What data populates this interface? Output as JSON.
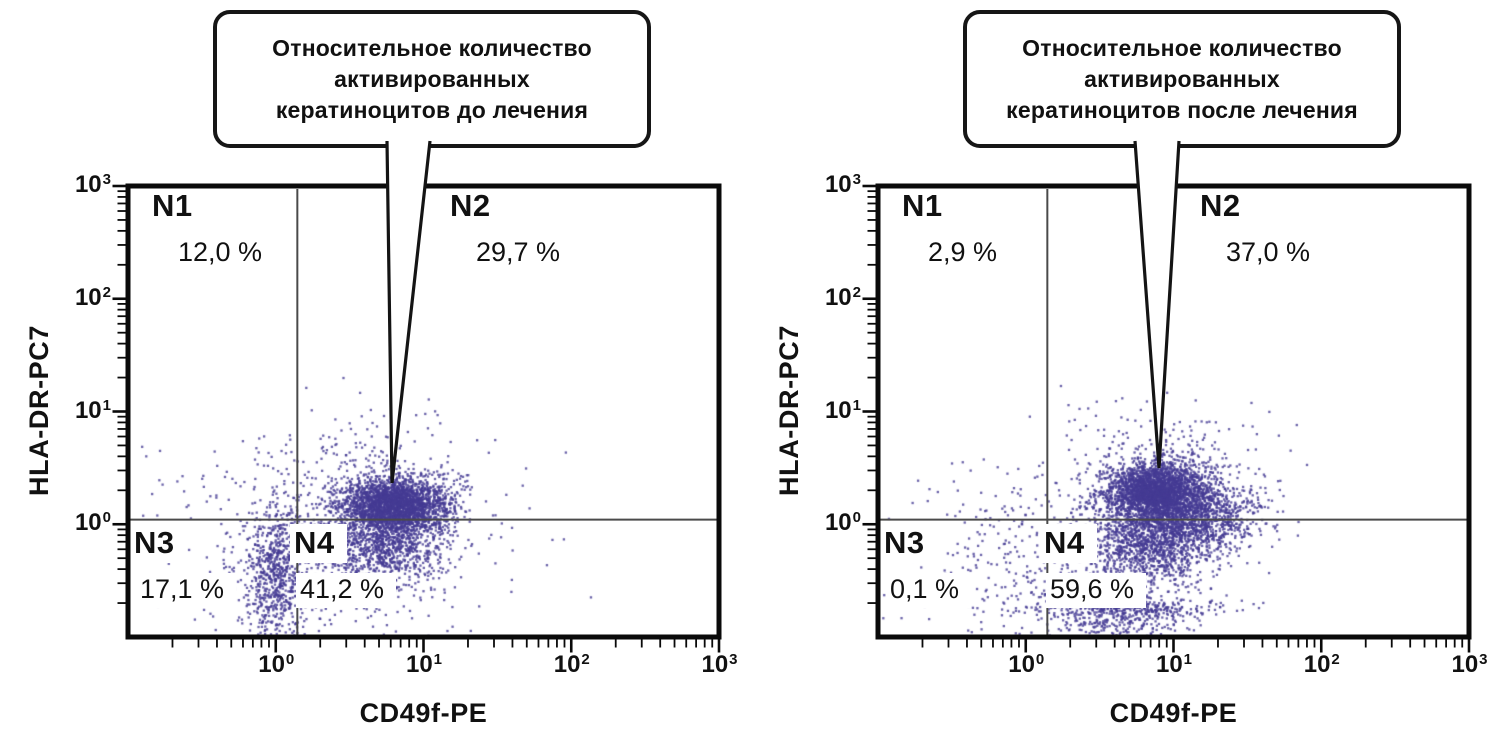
{
  "figure": {
    "background": "#ffffff",
    "dot_color": "#453b94",
    "frame_color": "#0a0a0a",
    "gate_color": "#4a4a4a",
    "text_color": "#111111",
    "tick_base": "10",
    "panels": [
      {
        "callout_lines": [
          "Относительное количество",
          "активированных",
          "кератиноцитов до лечения"
        ],
        "x_label": "CD49f-PE",
        "y_label": "HLA-DR-PC7",
        "quadrants": [
          {
            "name": "N1",
            "value": "12,0 %"
          },
          {
            "name": "N2",
            "value": "29,7 %"
          },
          {
            "name": "N3",
            "value": "17,1 %"
          },
          {
            "name": "N4",
            "value": "41,2 %"
          }
        ]
      },
      {
        "callout_lines": [
          "Относительное количество",
          "активированных",
          "кератиноцитов после лечения"
        ],
        "x_label": "CD49f-PE",
        "y_label": "HLA-DR-PC7",
        "quadrants": [
          {
            "name": "N1",
            "value": "2,9 %"
          },
          {
            "name": "N2",
            "value": "37,0 %"
          },
          {
            "name": "N3",
            "value": "0,1 %"
          },
          {
            "name": "N4",
            "value": "59,6 %"
          }
        ]
      }
    ]
  },
  "chart_data": [
    {
      "type": "scatter",
      "subtype": "flow-cytometry-dot-plot",
      "title": "Относительное количество активированных кератиноцитов до лечения",
      "xlabel": "CD49f-PE",
      "ylabel": "HLA-DR-PC7",
      "x_scale": "log",
      "y_scale": "log",
      "xlim": [
        0.1,
        1000
      ],
      "ylim": [
        0.1,
        1000
      ],
      "x_tick_exponents": [
        0,
        1,
        2,
        3
      ],
      "y_tick_exponents": [
        0,
        1,
        2,
        3
      ],
      "grid": false,
      "gate_x": 1.4,
      "gate_y": 1.1,
      "quadrant_percentages": {
        "N1": 12.0,
        "N2": 29.7,
        "N3": 17.1,
        "N4": 41.2
      },
      "seed": 42,
      "clusters": [
        {
          "cx": 0.8,
          "cy": 0.18,
          "sx": 0.18,
          "sy": 0.12,
          "n": 2600
        },
        {
          "cx": 0.72,
          "cy": -0.16,
          "sx": 0.22,
          "sy": 0.2,
          "n": 1100
        },
        {
          "cx": 0.0,
          "cy": -0.45,
          "sx": 0.1,
          "sy": 0.3,
          "n": 700
        },
        {
          "cx": 0.33,
          "cy": -0.3,
          "sx": 0.55,
          "sy": 0.42,
          "n": 520
        },
        {
          "cx": 0.55,
          "cy": 0.5,
          "sx": 0.45,
          "sy": 0.28,
          "n": 230
        }
      ]
    },
    {
      "type": "scatter",
      "subtype": "flow-cytometry-dot-plot",
      "title": "Относительное количество активированных кератиноцитов после лечения",
      "xlabel": "CD49f-PE",
      "ylabel": "HLA-DR-PC7",
      "x_scale": "log",
      "y_scale": "log",
      "xlim": [
        0.1,
        1000
      ],
      "ylim": [
        0.1,
        1000
      ],
      "x_tick_exponents": [
        0,
        1,
        2,
        3
      ],
      "y_tick_exponents": [
        0,
        1,
        2,
        3
      ],
      "grid": false,
      "gate_x": 1.4,
      "gate_y": 1.1,
      "quadrant_percentages": {
        "N1": 2.9,
        "N2": 37.0,
        "N3": 0.1,
        "N4": 59.6
      },
      "seed": 1337,
      "clusters": [
        {
          "cx": 0.88,
          "cy": 0.32,
          "sx": 0.17,
          "sy": 0.12,
          "n": 2400
        },
        {
          "cx": 1.1,
          "cy": 0.08,
          "sx": 0.24,
          "sy": 0.16,
          "n": 1400
        },
        {
          "cx": 0.82,
          "cy": -0.15,
          "sx": 0.22,
          "sy": 0.22,
          "n": 1300
        },
        {
          "cx": 0.65,
          "cy": -0.73,
          "sx": 0.3,
          "sy": 0.05,
          "n": 420
        },
        {
          "cx": 0.62,
          "cy": -0.88,
          "sx": 0.25,
          "sy": 0.06,
          "n": 180
        },
        {
          "cx": 0.12,
          "cy": -0.35,
          "sx": 0.5,
          "sy": 0.38,
          "n": 430
        },
        {
          "cx": 0.85,
          "cy": 0.58,
          "sx": 0.38,
          "sy": 0.24,
          "n": 240
        }
      ]
    }
  ]
}
